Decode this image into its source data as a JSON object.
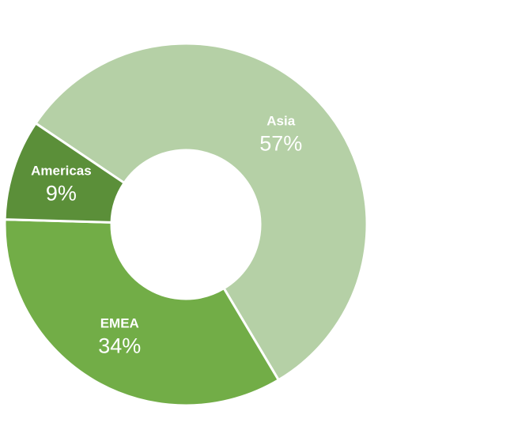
{
  "chart_data": {
    "type": "pie",
    "variant": "donut",
    "title": "",
    "labels": [
      "Asia",
      "EMEA",
      "Americas"
    ],
    "values": [
      57,
      34,
      9
    ],
    "value_labels": [
      "57%",
      "34%",
      "9%"
    ],
    "colors": [
      "#b5d0a6",
      "#72ad47",
      "#5b8f39"
    ],
    "legend": "none",
    "start_slice": "Asia",
    "direction": "clockwise"
  }
}
